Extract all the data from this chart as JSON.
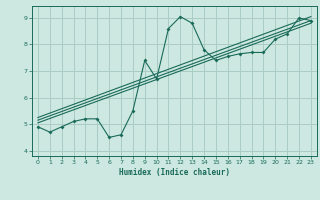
{
  "title": "",
  "xlabel": "Humidex (Indice chaleur)",
  "bg_color": "#cce8e0",
  "grid_color": "#aaccC4",
  "line_color": "#1a6a5a",
  "xlim": [
    -0.5,
    23.5
  ],
  "ylim": [
    3.8,
    9.45
  ],
  "xticks": [
    0,
    1,
    2,
    3,
    4,
    5,
    6,
    7,
    8,
    9,
    10,
    11,
    12,
    13,
    14,
    15,
    16,
    17,
    18,
    19,
    20,
    21,
    22,
    23
  ],
  "yticks": [
    4,
    5,
    6,
    7,
    8,
    9
  ],
  "wavy_x": [
    0,
    1,
    2,
    3,
    4,
    5,
    6,
    7,
    8,
    9,
    10,
    11,
    12,
    13,
    14,
    15,
    16,
    17,
    18,
    19,
    20,
    21,
    22,
    23
  ],
  "wavy_y": [
    4.9,
    4.7,
    4.9,
    5.1,
    5.2,
    5.2,
    4.5,
    4.6,
    5.5,
    7.4,
    6.7,
    8.6,
    9.05,
    8.8,
    7.8,
    7.4,
    7.55,
    7.65,
    7.7,
    7.7,
    8.2,
    8.4,
    9.0,
    8.9
  ],
  "line1_x": [
    0,
    23
  ],
  "line1_y": [
    5.05,
    8.8
  ],
  "line2_x": [
    0,
    23
  ],
  "line2_y": [
    5.15,
    8.9
  ],
  "line3_x": [
    0,
    23
  ],
  "line3_y": [
    5.25,
    9.05
  ]
}
